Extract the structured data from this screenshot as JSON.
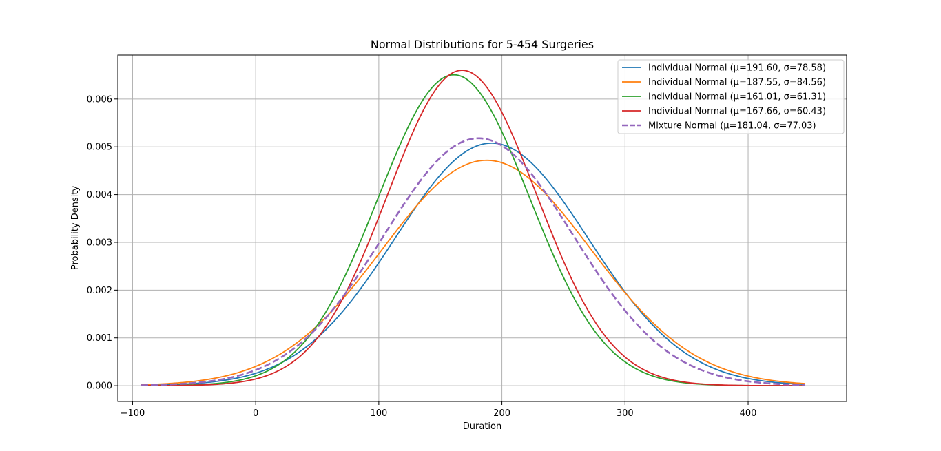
{
  "chart_data": {
    "type": "line",
    "title": "Normal Distributions for 5-454 Surgeries",
    "xlabel": "Duration",
    "ylabel": "Probability Density",
    "xlim": [
      -112,
      480
    ],
    "ylim": [
      -0.00033,
      0.00692
    ],
    "xticks": [
      -100,
      0,
      100,
      200,
      300,
      400
    ],
    "xtick_labels": [
      "−100",
      "0",
      "100",
      "200",
      "300",
      "400"
    ],
    "yticks": [
      0,
      0.001,
      0.002,
      0.003,
      0.004,
      0.005,
      0.006
    ],
    "ytick_labels": [
      "0.000",
      "0.001",
      "0.002",
      "0.003",
      "0.004",
      "0.005",
      "0.006"
    ],
    "x_range": [
      -93,
      446
    ],
    "grid": true,
    "legend_position": "top-right",
    "series": [
      {
        "name": "Individual Normal (μ=191.60, σ=78.58)",
        "mu": 191.6,
        "sigma": 78.58,
        "color": "#1f77b4",
        "dashed": false
      },
      {
        "name": "Individual Normal (μ=187.55, σ=84.56)",
        "mu": 187.55,
        "sigma": 84.56,
        "color": "#ff7f0e",
        "dashed": false
      },
      {
        "name": "Individual Normal (μ=161.01, σ=61.31)",
        "mu": 161.01,
        "sigma": 61.31,
        "color": "#2ca02c",
        "dashed": false
      },
      {
        "name": "Individual Normal (μ=167.66, σ=60.43)",
        "mu": 167.66,
        "sigma": 60.43,
        "color": "#d62728",
        "dashed": false
      },
      {
        "name": "Mixture Normal (μ=181.04, σ=77.03)",
        "mu": 181.04,
        "sigma": 77.03,
        "color": "#9467bd",
        "dashed": true
      }
    ]
  }
}
